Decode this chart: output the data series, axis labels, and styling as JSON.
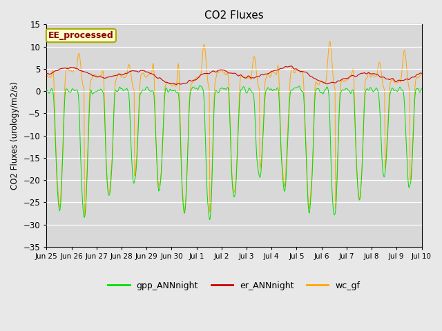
{
  "title": "CO2 Fluxes",
  "ylabel": "CO2 Fluxes (urology/m2/s)",
  "ylim": [
    -35,
    15
  ],
  "yticks": [
    -35,
    -30,
    -25,
    -20,
    -15,
    -10,
    -5,
    0,
    5,
    10,
    15
  ],
  "background_color": "#e8e8e8",
  "plot_bg_color": "#d8d8d8",
  "gpp_color": "#00dd00",
  "er_color": "#cc0000",
  "wc_color": "#ffa500",
  "legend_labels": [
    "gpp_ANNnight",
    "er_ANNnight",
    "wc_gf"
  ],
  "annotation_text": "EE_processed",
  "annotation_color": "#8b0000",
  "annotation_bg": "#ffffcc",
  "annotation_border": "#aaaa00",
  "n_days": 15,
  "points_per_day": 48,
  "title_fontsize": 11,
  "xtick_labels": [
    "Jun 25",
    "Jun 26",
    "Jun 27",
    "Jun 28",
    "Jun 29",
    "Jun 30",
    "Jul 1",
    "Jul 2",
    "Jul 3",
    "Jul 4",
    "Jul 5",
    "Jul 6",
    "Jul 7",
    "Jul 8",
    "Jul 9",
    "Jul 10"
  ]
}
